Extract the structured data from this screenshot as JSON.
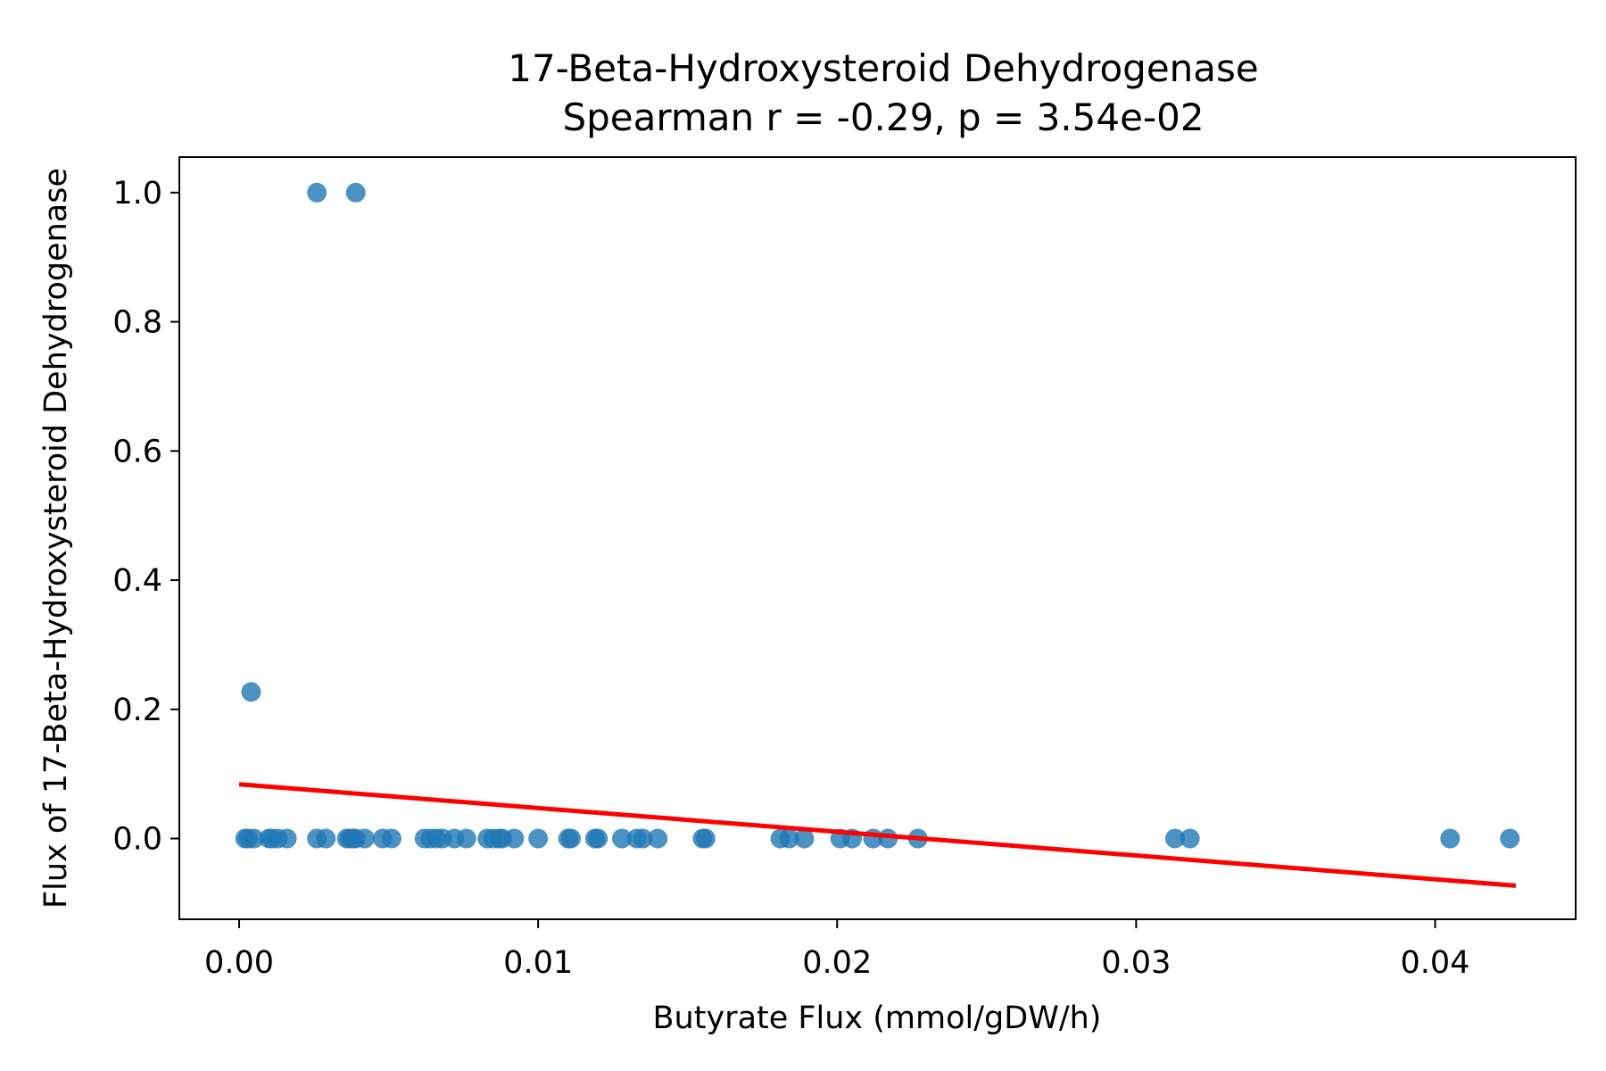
{
  "chart_data": {
    "type": "scatter",
    "title": "17-Beta-Hydroxysteroid Dehydrogenase",
    "subtitle": "Spearman r = -0.29, p = 3.54e-02",
    "xlabel": "Butyrate Flux (mmol/gDW/h)",
    "ylabel": "Flux of 17-Beta-Hydroxysteroid Dehydrogenase",
    "xlim": [
      -0.002,
      0.0447
    ],
    "ylim": [
      -0.125,
      1.055
    ],
    "xticks": [
      0.0,
      0.01,
      0.02,
      0.03,
      0.04
    ],
    "xtick_labels": [
      "0.00",
      "0.01",
      "0.02",
      "0.03",
      "0.04"
    ],
    "yticks": [
      0.0,
      0.2,
      0.4,
      0.6,
      0.8,
      1.0
    ],
    "ytick_labels": [
      "0.0",
      "0.2",
      "0.4",
      "0.6",
      "0.8",
      "1.0"
    ],
    "grid": false,
    "points": {
      "color": "#1f77b4",
      "opacity": 0.8,
      "x": [
        0.0002,
        0.0003,
        0.0004,
        0.0005,
        0.001,
        0.0011,
        0.0013,
        0.0016,
        0.0026,
        0.0029,
        0.0036,
        0.0037,
        0.0038,
        0.0039,
        0.0042,
        0.0048,
        0.0051,
        0.0062,
        0.0064,
        0.0066,
        0.0068,
        0.0072,
        0.0076,
        0.0083,
        0.0085,
        0.0087,
        0.0088,
        0.0092,
        0.01,
        0.011,
        0.0111,
        0.0119,
        0.012,
        0.0128,
        0.0133,
        0.0135,
        0.014,
        0.0155,
        0.0156,
        0.0181,
        0.0184,
        0.0189,
        0.0201,
        0.0205,
        0.0212,
        0.0217,
        0.0227,
        0.0313,
        0.0318,
        0.0405,
        0.0425,
        0.0026,
        0.0039
      ],
      "y": [
        0,
        0,
        0.227,
        0,
        0,
        0,
        0,
        0,
        0,
        0,
        0,
        0,
        0,
        0,
        0,
        0,
        0,
        0,
        0,
        0,
        0,
        0,
        0,
        0,
        0,
        0,
        0,
        0,
        0,
        0,
        0,
        0,
        0,
        0,
        0,
        0,
        0,
        0,
        0,
        0,
        0,
        0,
        0,
        0,
        0,
        0,
        0,
        0,
        0,
        0,
        0,
        1.0,
        1.0
      ]
    },
    "regression_line": {
      "color": "#ff0000",
      "x": [
        0.0,
        0.0427
      ],
      "y": [
        0.084,
        -0.073
      ]
    }
  }
}
